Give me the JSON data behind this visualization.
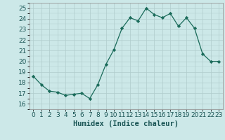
{
  "x": [
    0,
    1,
    2,
    3,
    4,
    5,
    6,
    7,
    8,
    9,
    10,
    11,
    12,
    13,
    14,
    15,
    16,
    17,
    18,
    19,
    20,
    21,
    22,
    23
  ],
  "y": [
    18.6,
    17.8,
    17.2,
    17.1,
    16.8,
    16.9,
    17.0,
    16.5,
    17.8,
    19.7,
    21.1,
    23.1,
    24.1,
    23.8,
    25.0,
    24.4,
    24.1,
    24.5,
    23.3,
    24.1,
    23.1,
    20.7,
    20.0,
    20.0
  ],
  "line_color": "#1a6b5a",
  "marker": "D",
  "marker_size": 2.2,
  "bg_color": "#cce8e8",
  "grid_color": "#b0cccc",
  "xlabel": "Humidex (Indice chaleur)",
  "xlabel_fontsize": 7.5,
  "tick_fontsize": 6.5,
  "ylim": [
    15.5,
    25.5
  ],
  "yticks": [
    16,
    17,
    18,
    19,
    20,
    21,
    22,
    23,
    24,
    25
  ],
  "xtick_labels": [
    "0",
    "1",
    "2",
    "3",
    "4",
    "5",
    "6",
    "7",
    "8",
    "9",
    "10",
    "11",
    "12",
    "13",
    "14",
    "15",
    "16",
    "17",
    "18",
    "19",
    "20",
    "21",
    "22",
    "23"
  ]
}
